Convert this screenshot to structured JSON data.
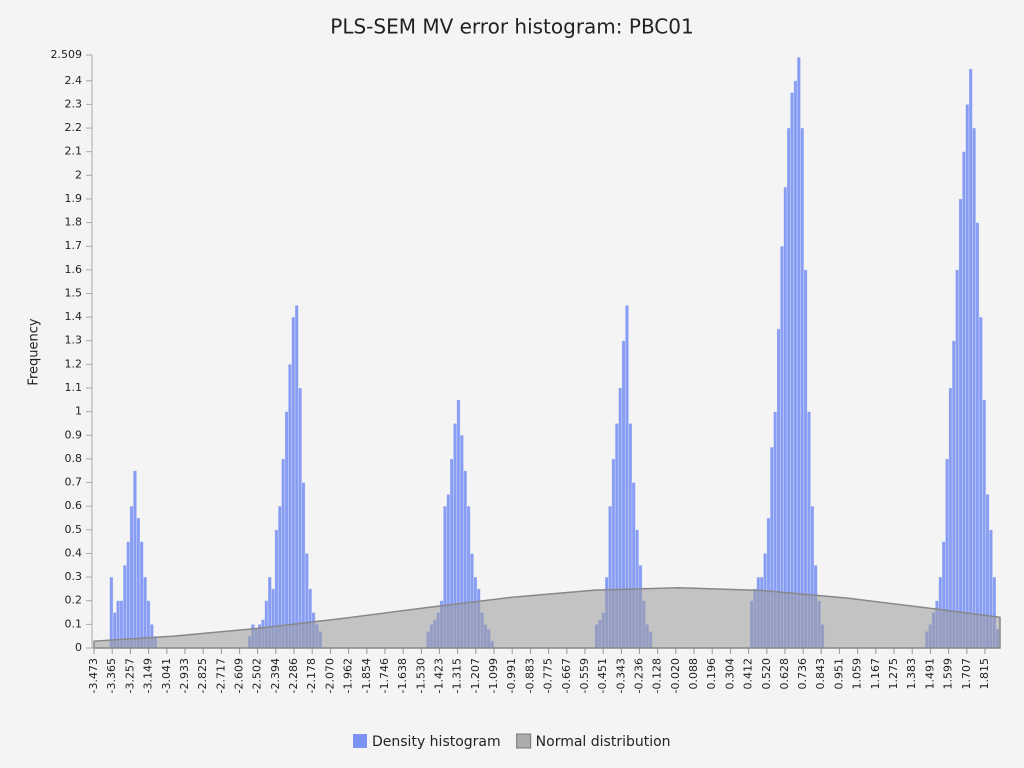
{
  "chart_data": {
    "type": "histogram",
    "title": "PLS-SEM MV error histogram: PBC01",
    "y_label": "Frequency",
    "xlim": [
      -3.473,
      1.904
    ],
    "ylim": [
      0,
      2.509
    ],
    "xticks": [
      -3.473,
      -3.365,
      -3.257,
      -3.149,
      -3.041,
      -2.933,
      -2.825,
      -2.717,
      -2.609,
      -2.502,
      -2.394,
      -2.286,
      -2.178,
      {
        "value": -2.07,
        "label": "-2.070"
      },
      -1.962,
      -1.854,
      -1.746,
      -1.638,
      {
        "value": -1.53,
        "label": "-1.530"
      },
      -1.423,
      -1.315,
      -1.207,
      -1.099,
      -0.991,
      -0.883,
      -0.775,
      -0.667,
      -0.559,
      -0.451,
      -0.343,
      -0.236,
      -0.128,
      {
        "value": -0.02,
        "label": "-0.020"
      },
      0.088,
      0.196,
      0.304,
      0.412,
      {
        "value": 0.52,
        "label": "0.520"
      },
      0.628,
      0.736,
      0.843,
      0.951,
      1.059,
      1.167,
      1.275,
      1.383,
      1.491,
      1.599,
      1.707,
      1.815
    ],
    "yticks": [
      0,
      0.1,
      0.2,
      0.3,
      0.4,
      0.5,
      0.6,
      0.7,
      0.8,
      0.9,
      1,
      1.1,
      1.2,
      1.3,
      1.4,
      1.5,
      1.6,
      1.7,
      1.8,
      1.9,
      2,
      2.1,
      2.2,
      2.3,
      2.4,
      2.509
    ],
    "series": [
      {
        "name": "Density histogram",
        "type": "histogram",
        "color": "#7b93f5",
        "bins": [
          -3.38,
          -3.36,
          -3.34,
          -3.32,
          -3.3,
          -3.28,
          -3.26,
          -3.24,
          -3.22,
          -3.2,
          -3.18,
          -3.16,
          -3.14,
          -3.12,
          -3.1,
          -2.56,
          -2.54,
          -2.52,
          -2.5,
          -2.48,
          -2.46,
          -2.44,
          -2.42,
          -2.4,
          -2.38,
          -2.36,
          -2.34,
          -2.32,
          -2.3,
          -2.28,
          -2.26,
          -2.24,
          -2.22,
          -2.2,
          -2.18,
          -2.16,
          -2.14,
          -2.12,
          -1.5,
          -1.48,
          -1.46,
          -1.44,
          -1.42,
          -1.4,
          -1.38,
          -1.36,
          -1.34,
          -1.32,
          -1.3,
          -1.28,
          -1.26,
          -1.24,
          -1.22,
          -1.2,
          -1.18,
          -1.16,
          -1.14,
          -1.12,
          -1.1,
          -0.5,
          -0.48,
          -0.46,
          -0.44,
          -0.42,
          -0.4,
          -0.38,
          -0.36,
          -0.34,
          -0.32,
          -0.3,
          -0.28,
          -0.26,
          -0.24,
          -0.22,
          -0.2,
          -0.18,
          -0.16,
          0.42,
          0.44,
          0.46,
          0.48,
          0.5,
          0.52,
          0.54,
          0.56,
          0.58,
          0.6,
          0.62,
          0.64,
          0.66,
          0.68,
          0.7,
          0.72,
          0.74,
          0.76,
          0.78,
          0.8,
          0.82,
          0.84,
          0.86,
          1.46,
          1.48,
          1.5,
          1.52,
          1.54,
          1.56,
          1.58,
          1.6,
          1.62,
          1.64,
          1.66,
          1.68,
          1.7,
          1.72,
          1.74,
          1.76,
          1.78,
          1.8,
          1.82,
          1.84,
          1.86,
          1.88,
          1.9
        ],
        "values": [
          0.3,
          0.15,
          0.2,
          0.2,
          0.35,
          0.45,
          0.6,
          0.75,
          0.55,
          0.45,
          0.3,
          0.2,
          0.1,
          0.05,
          0,
          0.05,
          0.1,
          0.08,
          0.1,
          0.12,
          0.2,
          0.3,
          0.25,
          0.5,
          0.6,
          0.8,
          1.0,
          1.2,
          1.4,
          1.45,
          1.1,
          0.7,
          0.4,
          0.25,
          0.15,
          0.1,
          0.07,
          0,
          0.07,
          0.1,
          0.12,
          0.15,
          0.2,
          0.6,
          0.65,
          0.8,
          0.95,
          1.05,
          0.9,
          0.75,
          0.6,
          0.4,
          0.3,
          0.25,
          0.15,
          0.1,
          0.08,
          0.03,
          0,
          0.1,
          0.12,
          0.15,
          0.3,
          0.6,
          0.8,
          0.95,
          1.1,
          1.3,
          1.45,
          0.95,
          0.7,
          0.5,
          0.35,
          0.2,
          0.1,
          0.07,
          0,
          0.2,
          0.25,
          0.3,
          0.3,
          0.4,
          0.55,
          0.85,
          1.0,
          1.35,
          1.7,
          1.95,
          2.2,
          2.35,
          2.4,
          2.5,
          2.2,
          1.6,
          1.0,
          0.6,
          0.35,
          0.2,
          0.1,
          0,
          0.07,
          0.1,
          0.15,
          0.2,
          0.3,
          0.45,
          0.8,
          1.1,
          1.3,
          1.6,
          1.9,
          2.1,
          2.3,
          2.45,
          2.2,
          1.8,
          1.4,
          1.05,
          0.65,
          0.5,
          0.3,
          0.08
        ]
      },
      {
        "name": "Normal distribution",
        "type": "area",
        "color": "#9a9a9a",
        "x": [
          -3.473,
          -3.0,
          -2.5,
          -2.0,
          -1.5,
          -1.0,
          -0.5,
          0,
          0.5,
          1.0,
          1.5,
          1.904
        ],
        "values": [
          0.029,
          0.05,
          0.083,
          0.125,
          0.171,
          0.214,
          0.245,
          0.255,
          0.243,
          0.211,
          0.167,
          0.13
        ]
      }
    ]
  }
}
